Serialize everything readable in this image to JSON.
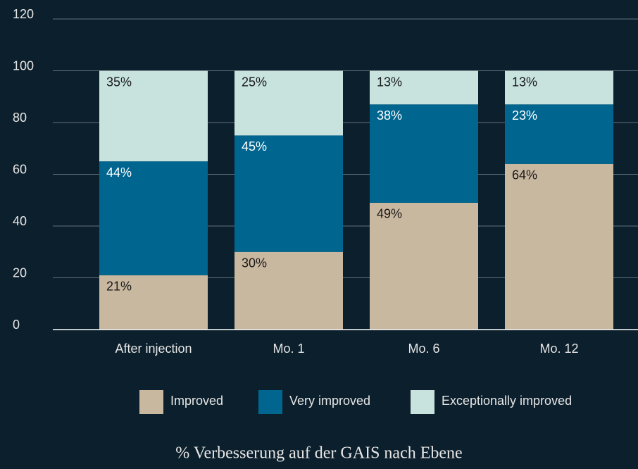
{
  "chart_data": {
    "type": "bar",
    "stacked": true,
    "title": "% Verbesserung auf der GAIS nach Ebene",
    "categories": [
      "After injection",
      "Mo. 1",
      "Mo. 6",
      "Mo. 12"
    ],
    "series": [
      {
        "name": "Improved",
        "color": "#c9b8a0",
        "values": [
          21,
          30,
          49,
          64
        ],
        "value_labels": [
          "21%",
          "30%",
          "49%",
          "64%"
        ]
      },
      {
        "name": "Very improved",
        "color": "#006690",
        "values": [
          44,
          45,
          38,
          23
        ],
        "value_labels": [
          "44%",
          "45%",
          "38%",
          "23%"
        ]
      },
      {
        "name": "Exceptionally improved",
        "color": "#c8e3de",
        "values": [
          35,
          25,
          13,
          13
        ],
        "value_labels": [
          "35%",
          "25%",
          "13%",
          "13%"
        ]
      }
    ],
    "ylim": [
      0,
      120
    ],
    "yticks": [
      0,
      20,
      40,
      60,
      80,
      100,
      120
    ],
    "grid": true,
    "legend": "bottom"
  }
}
